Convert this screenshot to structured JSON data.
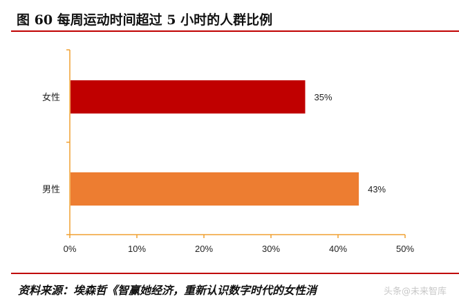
{
  "header": {
    "title": "图 60 每周运动时间超过 5 小时的人群比例"
  },
  "chart_data": {
    "type": "bar",
    "orientation": "horizontal",
    "categories": [
      "女性",
      "男性"
    ],
    "values": [
      35,
      43
    ],
    "value_labels": [
      "35%",
      "43%"
    ],
    "bar_colors": [
      "#c00000",
      "#ed7d31"
    ],
    "xlim": [
      0,
      50
    ],
    "xticks": [
      "0%",
      "10%",
      "20%",
      "30%",
      "40%",
      "50%"
    ],
    "title": "",
    "xlabel": "",
    "ylabel": "",
    "grid": false,
    "axis_color": "#f0a030"
  },
  "footer": {
    "source": "资料来源：埃森哲《智赢她经济，重新认识数字时代的女性消",
    "watermark": "头条@未来智库"
  }
}
